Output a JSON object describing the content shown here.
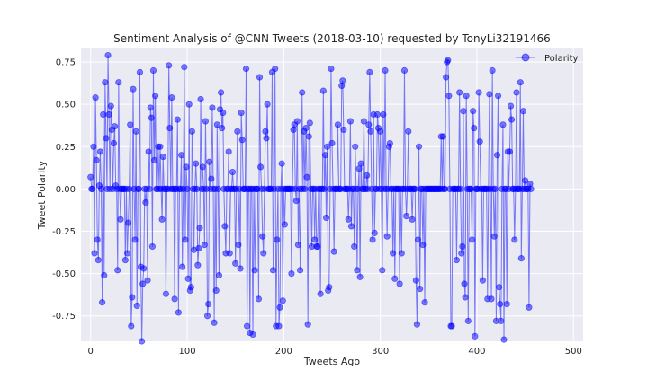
{
  "chart_data": {
    "type": "line",
    "title": "Sentiment Analysis of @CNN Tweets (2018-03-10) requested by TonyLi32191466",
    "xlabel": "Tweets Ago",
    "ylabel": "Tweet Polarity",
    "xlim": [
      -10,
      510
    ],
    "ylim": [
      -0.9,
      0.83
    ],
    "xticks": [
      0,
      100,
      200,
      300,
      400,
      500
    ],
    "yticks": [
      -0.75,
      -0.5,
      -0.25,
      0.0,
      0.25,
      0.5,
      0.75
    ],
    "grid": true,
    "legend_position": "top-right",
    "series": [
      {
        "name": "Polarity",
        "color": "#0000ff",
        "marker": "circle",
        "y": [
          0.07,
          0.0,
          0.0,
          0.25,
          -0.38,
          0.54,
          0.17,
          -0.3,
          -0.42,
          0.22,
          0.0,
          -0.67,
          0.44,
          -0.51,
          0.63,
          0.0,
          0.79,
          0.44,
          0.0,
          0.49,
          0.35,
          0.0,
          0.27,
          0.0,
          -0.48,
          0.63,
          0.0,
          -0.18,
          0.0,
          0.0,
          0.0,
          -0.42,
          0.0,
          -0.38,
          -0.2,
          0.0,
          0.38,
          -0.81,
          -0.64,
          0.59,
          0.0,
          -0.3,
          0.34,
          -0.69,
          0.0,
          0.0,
          0.69,
          -0.46,
          -0.9,
          -0.56,
          -0.47,
          0.0,
          -0.08,
          0.0,
          -0.54,
          0.22,
          0.0,
          0.48,
          0.42,
          -0.34,
          0.7,
          0.17,
          0.55,
          0.0,
          0.0,
          0.25,
          0.0,
          0.25,
          0.0,
          -0.18,
          0.19,
          0.0,
          0.0,
          -0.62,
          0.0,
          0.0,
          0.73,
          0.36,
          0.0,
          0.54,
          0.0,
          0.0,
          -0.65,
          0.0,
          0.0,
          0.41,
          -0.73,
          0.0,
          0.0,
          0.2,
          -0.46,
          0.0,
          0.72,
          -0.3,
          0.13,
          0.0,
          -0.53,
          0.5,
          -0.6,
          -0.58,
          0.34,
          0.0,
          -0.36,
          0.0,
          0.15,
          0.0,
          -0.45,
          -0.35,
          -0.23,
          0.53,
          0.0,
          0.13,
          0.0,
          -0.33,
          0.4,
          0.0,
          -0.75,
          -0.68,
          0.16,
          0.0,
          0.06,
          0.48,
          0.0,
          -0.79,
          0.0,
          -0.6,
          0.38,
          0.0,
          -0.51,
          0.47,
          0.57,
          0.36,
          0.45,
          0.0,
          -0.22,
          -0.38,
          0.0,
          0.0,
          0.22,
          -0.38,
          0.0,
          0.0,
          0.1,
          0.0,
          0.0
        ],
        "x_start": 0,
        "x_step": 1
      }
    ],
    "series_full": [
      0.07,
      0.0,
      0.0,
      0.25,
      -0.38,
      0.54,
      0.17,
      -0.3,
      -0.42,
      0.02,
      0.22,
      0.0,
      -0.67,
      0.44,
      -0.51,
      0.63,
      0.3,
      0.0,
      0.79,
      0.44,
      0.0,
      0.49,
      0.35,
      0.0,
      0.27,
      0.37,
      0.02,
      0.0,
      -0.48,
      0.63,
      0.0,
      -0.18,
      0.0,
      0.0,
      0.0,
      0.0,
      -0.42,
      0.0,
      -0.38,
      -0.2,
      0.0,
      0.38,
      -0.81,
      -0.64,
      0.59,
      0.0,
      -0.3,
      0.34,
      -0.69,
      0.0,
      0.0,
      0.69,
      -0.46,
      -0.9,
      -0.56,
      -0.47,
      0.0,
      -0.08,
      0.0,
      -0.54,
      0.22,
      0.0,
      0.48,
      0.42,
      -0.34,
      0.7,
      0.17,
      0.55,
      0.0,
      0.0,
      0.25,
      0.0,
      0.25,
      0.0,
      -0.18,
      0.19,
      0.0,
      0.0,
      -0.62,
      0.0,
      0.0,
      0.73,
      0.36,
      0.0,
      0.54,
      0.0,
      0.0,
      -0.65,
      0.0,
      0.0,
      0.41,
      -0.73,
      0.0,
      0.0,
      0.2,
      -0.46,
      0.0,
      0.72,
      -0.3,
      0.13,
      0.0,
      -0.53,
      0.5,
      -0.6,
      -0.58,
      0.34,
      0.0,
      -0.36,
      0.0,
      0.15,
      0.0,
      -0.45,
      -0.35,
      -0.23,
      0.53,
      0.0,
      0.13,
      0.0,
      -0.33,
      0.4,
      0.0,
      -0.75,
      -0.68,
      0.16,
      0.0,
      0.06,
      0.48,
      0.0,
      -0.79,
      0.0,
      -0.6,
      0.38,
      0.0,
      -0.51,
      0.47,
      0.57,
      0.36,
      0.45,
      0.0,
      -0.22,
      -0.38,
      0.0,
      0.0,
      0.22,
      -0.38,
      0.0,
      0.0,
      0.1,
      0.0,
      0.0,
      -0.44,
      0.0,
      0.34,
      -0.33,
      0.0,
      -0.47,
      0.45,
      0.29,
      0.0,
      0.0,
      0.0,
      0.71,
      -0.81,
      0.0,
      0.0,
      -0.85,
      0.0,
      0.0,
      -0.86,
      0.0,
      -0.48,
      0.0,
      0.0,
      0.0,
      -0.65,
      0.66,
      0.13,
      0.0,
      -0.28,
      -0.38,
      0.0,
      0.34,
      0.3,
      0.5,
      0.0,
      0.0,
      0.0,
      0.0,
      0.69,
      -0.48,
      0.0,
      0.71,
      -0.81,
      -0.3,
      0.0,
      -0.81,
      -0.7,
      0.0,
      0.15,
      -0.66,
      0.0,
      -0.21,
      0.0,
      0.0,
      0.0,
      0.0,
      0.0,
      0.0,
      -0.5,
      0.0,
      0.35,
      0.38,
      0.0,
      -0.07,
      0.4,
      -0.33,
      0.0,
      -0.48,
      0.0,
      0.57,
      0.0,
      0.34,
      0.0,
      0.36,
      0.07,
      -0.8,
      0.31,
      0.39,
      0.0,
      -0.34,
      0.0,
      0.0,
      -0.3,
      0.0,
      -0.34,
      -0.34,
      0.0,
      0.0,
      -0.62,
      0.0,
      0.0,
      0.58,
      0.0,
      0.2,
      -0.17,
      0.25,
      -0.6,
      -0.58,
      0.0,
      0.71,
      0.27,
      0.0,
      -0.37,
      0.0,
      0.0,
      0.0,
      0.38,
      0.0,
      0.0,
      0.0,
      0.61,
      0.64,
      0.35,
      0.0,
      0.0,
      0.0,
      0.0,
      -0.18,
      0.0,
      0.4,
      -0.22,
      0.0,
      0.0,
      -0.34,
      0.25,
      0.0,
      -0.48,
      0.0,
      0.12,
      -0.52,
      0.15,
      0.0,
      0.0,
      0.4,
      0.0,
      0.0,
      0.08,
      0.0,
      0.38,
      0.69,
      0.34,
      0.0,
      -0.3,
      0.44,
      -0.26,
      0.0,
      0.0,
      0.44,
      0.36,
      0.0,
      0.34,
      0.0,
      -0.48,
      0.44,
      0.0,
      0.7,
      0.0,
      -0.28,
      0.0,
      0.25,
      0.27,
      0.0,
      0.0,
      -0.38,
      0.0,
      -0.53,
      0.0,
      0.0,
      0.0,
      0.0,
      -0.56,
      0.0,
      -0.38,
      0.0,
      0.0,
      0.7,
      0.0,
      -0.16,
      0.0,
      0.34,
      0.0,
      0.0,
      0.0,
      -0.18,
      0.0,
      0.0,
      0.0,
      -0.54,
      -0.8,
      -0.3,
      0.25,
      -0.59,
      0.0,
      0.0,
      -0.33,
      0.0,
      -0.67,
      0.0,
      0.0,
      0.0,
      0.0,
      0.0,
      0.0,
      0.0,
      0.0,
      0.0,
      0.0,
      0.0,
      0.0,
      0.0,
      0.0,
      0.0,
      0.0,
      0.31,
      0.0,
      0.31,
      0.0,
      0.0,
      0.66,
      0.75,
      0.76,
      0.55,
      0.0,
      -0.81,
      -0.81,
      0.0,
      0.0,
      0.0,
      0.0,
      -0.42,
      0.0,
      0.0,
      0.57,
      0.0,
      -0.38,
      -0.34,
      0.46,
      -0.56,
      -0.64,
      0.55,
      0.0,
      -0.78,
      0.0,
      0.0,
      0.0,
      -0.3,
      0.46,
      0.36,
      -0.87,
      0.0,
      0.0,
      0.0,
      0.57,
      0.28,
      0.0,
      0.0,
      -0.54,
      0.0,
      0.0,
      0.0,
      0.0,
      -0.65,
      0.0,
      0.56,
      0.0,
      -0.65,
      0.7,
      0.0,
      -0.28,
      0.0,
      -0.78,
      0.2,
      0.55,
      -0.58,
      -0.68,
      -0.78,
      0.0,
      0.38,
      -0.89,
      0.0,
      0.0,
      -0.68,
      0.22,
      0.0,
      0.22,
      0.49,
      0.41,
      0.0,
      0.0,
      -0.3,
      0.0,
      0.57,
      0.0,
      0.0,
      0.0,
      0.63,
      -0.41,
      0.0,
      0.46,
      0.0,
      0.05,
      0.0,
      0.0,
      0.0,
      -0.7,
      0.03,
      0.0
    ]
  }
}
